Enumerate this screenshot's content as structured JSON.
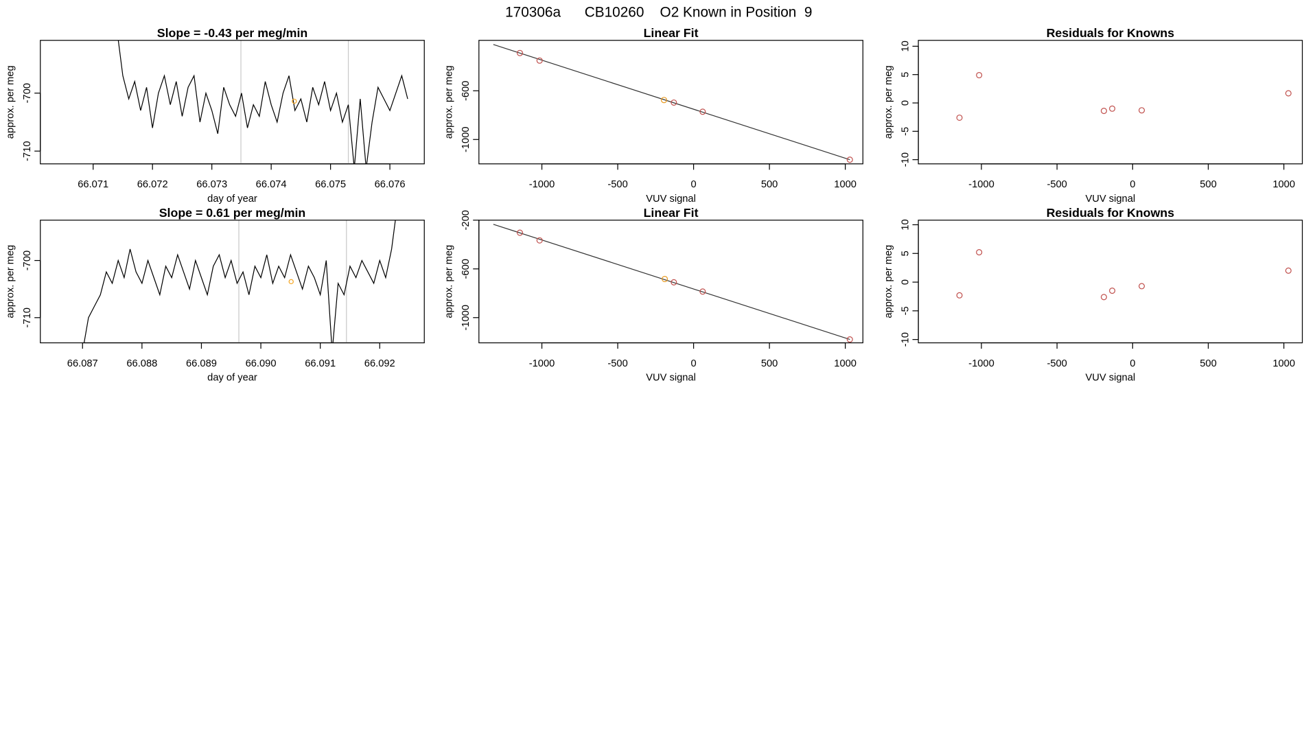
{
  "title": "170306a      CB10260    O2 Known in Position  9",
  "chart_data": [
    {
      "type": "line",
      "title": "Slope =  -0.43  per meg/min",
      "xlabel": "day of year",
      "ylabel": "approx. per meg",
      "color": "#000000",
      "x": [
        66.0714,
        66.0715,
        66.0716,
        66.0717,
        66.0718,
        66.0719,
        66.072,
        66.0721,
        66.0722,
        66.0723,
        66.0724,
        66.0725,
        66.0726,
        66.0727,
        66.0728,
        66.0729,
        66.073,
        66.0731,
        66.0732,
        66.0733,
        66.0734,
        66.0735,
        66.0736,
        66.0737,
        66.0738,
        66.0739,
        66.074,
        66.0741,
        66.0742,
        66.0743,
        66.0744,
        66.0745,
        66.0746,
        66.0747,
        66.0748,
        66.0749,
        66.075,
        66.0751,
        66.0752,
        66.0753,
        66.0754,
        66.0755,
        66.0756,
        66.0757,
        66.0758,
        66.0759,
        66.076,
        66.0761,
        66.0762,
        66.0763
      ],
      "values": [
        -689,
        -697,
        -701,
        -698,
        -703,
        -699,
        -706,
        -700,
        -697,
        -702,
        -698,
        -704,
        -699,
        -697,
        -705,
        -700,
        -703,
        -707,
        -699,
        -702,
        -704,
        -700,
        -706,
        -702,
        -704,
        -698,
        -702,
        -705,
        -700,
        -697,
        -703,
        -701,
        -705,
        -699,
        -702,
        -698,
        -703,
        -700,
        -705,
        -702,
        -713,
        -701,
        -713,
        -705,
        -699,
        -701,
        -703,
        -700,
        -697,
        -701
      ],
      "vlines": [
        66.07349,
        66.0753
      ],
      "vline_color": "#c8c8c8",
      "marker": {
        "x": 66.07439,
        "value": -701.4,
        "color": "#f5a623"
      },
      "xlim": [
        66.07011,
        66.07658
      ],
      "ylim": [
        -712.2,
        -690.9
      ],
      "xticks": [
        66.071,
        66.072,
        66.073,
        66.074,
        66.075,
        66.076
      ],
      "yticks": [
        -710,
        -700
      ]
    },
    {
      "type": "scatter",
      "title": "Linear Fit",
      "xlabel": "VUV signal",
      "ylabel": "approx. per meg",
      "x": [
        -1145,
        -1015,
        -195,
        -130,
        60,
        1030
      ],
      "values": [
        -290,
        -352,
        -676,
        -697,
        -772,
        -1166
      ],
      "colors": [
        "#c0504d",
        "#c0504d",
        "#e89a20",
        "#c0504d",
        "#c0504d",
        "#c0504d"
      ],
      "fit": {
        "x": [
          -1320,
          1030
        ],
        "values": [
          -220,
          -1166
        ],
        "color": "#333333"
      },
      "xlim": [
        -1415,
        1116
      ],
      "ylim": [
        -1200,
        -186
      ],
      "xticks": [
        -1000,
        -500,
        0,
        500,
        1000
      ],
      "yticks": [
        -1000,
        -600
      ]
    },
    {
      "type": "scatter",
      "title": "Residuals for Knowns",
      "xlabel": "VUV signal",
      "ylabel": "approx. per meg",
      "x": [
        -1145,
        -1015,
        -190,
        -135,
        60,
        1030
      ],
      "values": [
        -2.6,
        4.9,
        -1.4,
        -1.0,
        -1.3,
        1.7
      ],
      "colors": [
        "#c0504d",
        "#c0504d",
        "#c0504d",
        "#c0504d",
        "#c0504d",
        "#c0504d"
      ],
      "xlim": [
        -1417,
        1122
      ],
      "ylim": [
        -10.74,
        11.04
      ],
      "xticks": [
        -1000,
        -500,
        0,
        500,
        1000
      ],
      "yticks": [
        -10,
        -5,
        0,
        5,
        10
      ]
    },
    {
      "type": "line",
      "title": "Slope =  0.61  per meg/min",
      "xlabel": "day of year",
      "ylabel": "approx. per meg",
      "color": "#000000",
      "x": [
        66.087,
        66.0871,
        66.0872,
        66.0873,
        66.0874,
        66.0875,
        66.0876,
        66.0877,
        66.0878,
        66.0879,
        66.088,
        66.0881,
        66.0882,
        66.0883,
        66.0884,
        66.0885,
        66.0886,
        66.0887,
        66.0888,
        66.0889,
        66.089,
        66.0891,
        66.0892,
        66.0893,
        66.0894,
        66.0895,
        66.0896,
        66.0897,
        66.0898,
        66.0899,
        66.09,
        66.0901,
        66.0902,
        66.0903,
        66.0904,
        66.0905,
        66.0906,
        66.0907,
        66.0908,
        66.0909,
        66.091,
        66.0911,
        66.0912,
        66.0913,
        66.0914,
        66.0915,
        66.0916,
        66.0917,
        66.0918,
        66.0919,
        66.092,
        66.0921,
        66.0922,
        66.0923
      ],
      "values": [
        -716,
        -710,
        -708,
        -706,
        -702,
        -704,
        -700,
        -703,
        -698,
        -702,
        -704,
        -700,
        -703,
        -706,
        -701,
        -703,
        -699,
        -702,
        -705,
        -700,
        -703,
        -706,
        -701,
        -699,
        -703,
        -700,
        -704,
        -702,
        -706,
        -701,
        -703,
        -699,
        -704,
        -701,
        -703,
        -699,
        -702,
        -705,
        -701,
        -703,
        -706,
        -700,
        -716,
        -704,
        -706,
        -701,
        -703,
        -700,
        -702,
        -704,
        -700,
        -703,
        -698,
        -690
      ],
      "vlines": [
        66.08963,
        66.09144
      ],
      "vline_color": "#c8c8c8",
      "marker": {
        "x": 66.09051,
        "value": -703.7,
        "color": "#f5a623"
      },
      "xlim": [
        66.08629,
        66.09275
      ],
      "ylim": [
        -714.41,
        -692.94
      ],
      "xticks": [
        66.087,
        66.088,
        66.089,
        {
          "value": 66.09,
          "label": "66.090"
        },
        66.091,
        66.092
      ],
      "yticks": [
        -710,
        -700
      ]
    },
    {
      "type": "scatter",
      "title": "Linear Fit",
      "xlabel": "VUV signal",
      "ylabel": "approx. per meg",
      "x": [
        -1145,
        -1015,
        -190,
        -130,
        60,
        1030
      ],
      "values": [
        -303,
        -366,
        -683,
        -710,
        -786,
        -1179
      ],
      "colors": [
        "#c0504d",
        "#c0504d",
        "#e89a20",
        "#c0504d",
        "#c0504d",
        "#c0504d"
      ],
      "fit": {
        "x": [
          -1320,
          1030
        ],
        "values": [
          -234,
          -1179
        ],
        "color": "#333333"
      },
      "xlim": [
        -1415,
        1116
      ],
      "ylim": [
        -1207,
        -200
      ],
      "xticks": [
        -1000,
        -500,
        0,
        500,
        1000
      ],
      "yticks": [
        -1000,
        -600,
        -200
      ]
    },
    {
      "type": "scatter",
      "title": "Residuals for Knowns",
      "xlabel": "VUV signal",
      "ylabel": "approx. per meg",
      "x": [
        -1145,
        -1015,
        -190,
        -135,
        60,
        1030
      ],
      "values": [
        -2.3,
        5.2,
        -2.6,
        -1.5,
        -0.7,
        2.0
      ],
      "colors": [
        "#c0504d",
        "#c0504d",
        "#c0504d",
        "#c0504d",
        "#c0504d",
        "#c0504d"
      ],
      "xlim": [
        -1417,
        1122
      ],
      "ylim": [
        -10.58,
        10.8
      ],
      "xticks": [
        -1000,
        -500,
        0,
        500,
        1000
      ],
      "yticks": [
        -10,
        -5,
        0,
        5,
        10
      ]
    }
  ]
}
